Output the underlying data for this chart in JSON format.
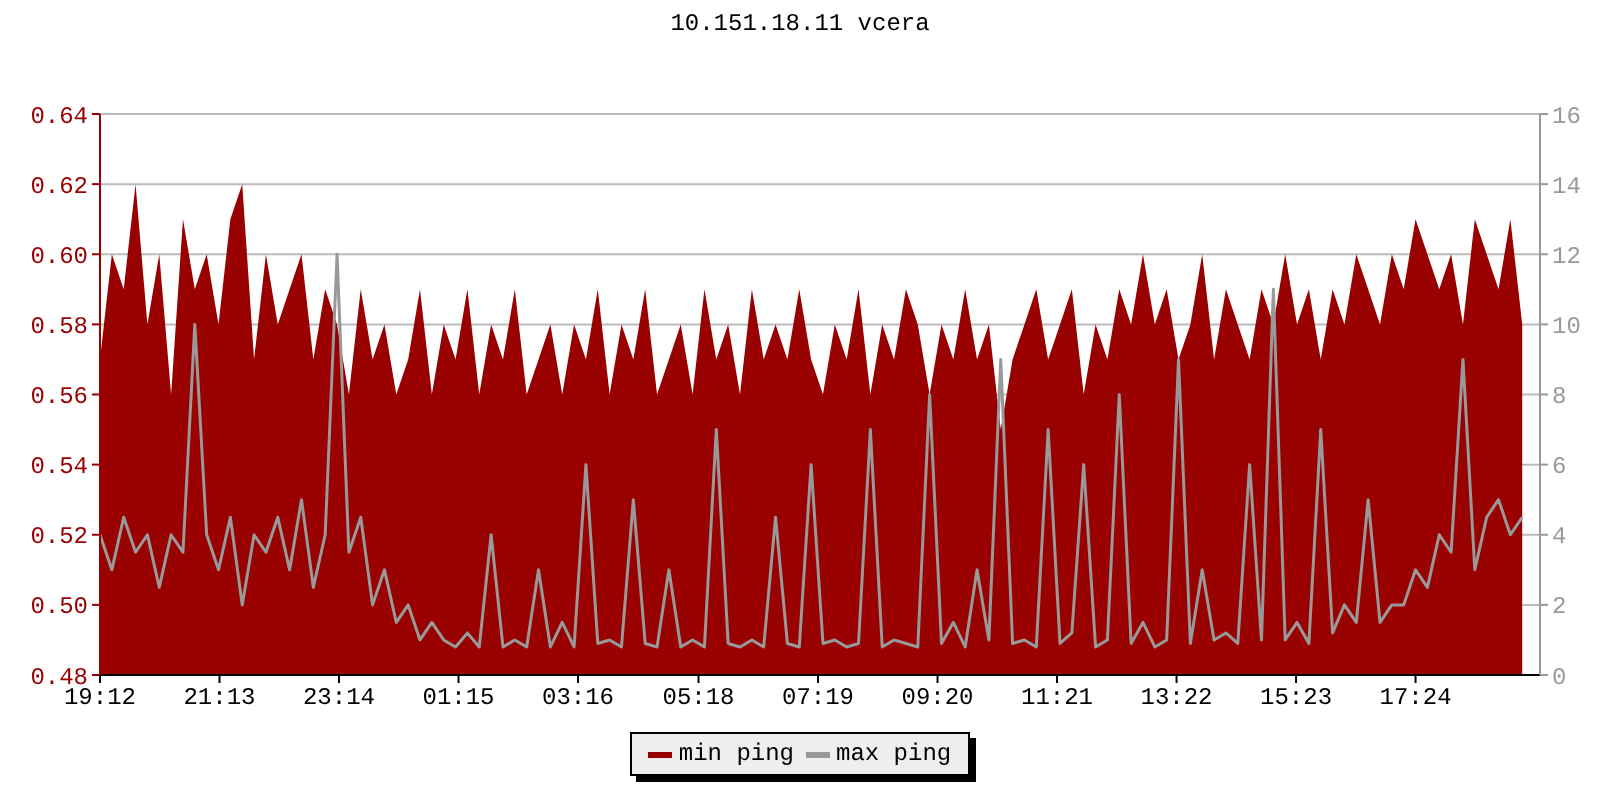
{
  "chart_data": {
    "type": "area",
    "title": "10.151.18.11 vcera",
    "x": [
      "--01-01T19:12",
      "--01-01T19:24",
      "--01-01T19:36",
      "--01-01T19:48",
      "--01-01T20:00",
      "--01-01T20:12",
      "--01-01T20:24",
      "--01-01T20:36",
      "--01-01T20:48",
      "--01-01T21:00",
      "--01-01T21:12",
      "--01-01T21:24",
      "--01-01T21:36",
      "--01-01T21:48",
      "--01-01T22:00",
      "--01-01T22:12",
      "--01-01T22:24",
      "--01-01T22:36",
      "--01-01T22:48",
      "--01-01T23:00",
      "--01-01T23:12",
      "--01-01T23:24",
      "--01-01T23:36",
      "--01-01T23:48",
      "--01-02T00:00",
      "--01-02T00:12",
      "--01-02T00:24",
      "--01-02T00:36",
      "--01-02T00:48",
      "--01-02T01:00",
      "--01-02T01:12",
      "--01-02T01:24",
      "--01-02T01:36",
      "--01-02T01:48",
      "--01-02T02:00",
      "--01-02T02:12",
      "--01-02T02:24",
      "--01-02T02:36",
      "--01-02T02:48",
      "--01-02T03:00",
      "--01-02T03:12",
      "--01-02T03:24",
      "--01-02T03:36",
      "--01-02T03:48",
      "--01-02T04:00",
      "--01-02T04:12",
      "--01-02T04:24",
      "--01-02T04:36",
      "--01-02T04:48",
      "--01-02T05:00",
      "--01-02T05:12",
      "--01-02T05:24",
      "--01-02T05:36",
      "--01-02T05:48",
      "--01-02T06:00",
      "--01-02T06:12",
      "--01-02T06:24",
      "--01-02T06:36",
      "--01-02T06:48",
      "--01-02T07:00",
      "--01-02T07:12",
      "--01-02T07:24",
      "--01-02T07:36",
      "--01-02T07:48",
      "--01-02T08:00",
      "--01-02T08:12",
      "--01-02T08:24",
      "--01-02T08:36",
      "--01-02T08:48",
      "--01-02T09:00",
      "--01-02T09:12",
      "--01-02T09:24",
      "--01-02T09:36",
      "--01-02T09:48",
      "--01-02T10:00",
      "--01-02T10:12",
      "--01-02T10:24",
      "--01-02T10:36",
      "--01-02T10:48",
      "--01-02T11:00",
      "--01-02T11:12",
      "--01-02T11:24",
      "--01-02T11:36",
      "--01-02T11:48",
      "--01-02T12:00",
      "--01-02T12:12",
      "--01-02T12:24",
      "--01-02T12:36",
      "--01-02T12:48",
      "--01-02T13:00",
      "--01-02T13:12",
      "--01-02T13:24",
      "--01-02T13:36",
      "--01-02T13:48",
      "--01-02T14:00",
      "--01-02T14:12",
      "--01-02T14:24",
      "--01-02T14:36",
      "--01-02T14:48",
      "--01-02T15:00",
      "--01-02T15:12",
      "--01-02T15:24",
      "--01-02T15:36",
      "--01-02T15:48",
      "--01-02T16:00",
      "--01-02T16:12",
      "--01-02T16:24",
      "--01-02T16:36",
      "--01-02T16:48",
      "--01-02T17:00",
      "--01-02T17:12",
      "--01-02T17:24",
      "--01-02T17:36",
      "--01-02T17:48",
      "--01-02T18:00",
      "--01-02T18:12",
      "--01-02T18:24",
      "--01-02T18:36",
      "--01-02T18:48",
      "--01-02T19:00",
      "--01-02T19:12"
    ],
    "series": [
      {
        "name": "min ping",
        "color": "#990000",
        "values": [
          0.57,
          0.6,
          0.59,
          0.62,
          0.58,
          0.6,
          0.56,
          0.61,
          0.59,
          0.6,
          0.58,
          0.61,
          0.62,
          0.57,
          0.6,
          0.58,
          0.59,
          0.6,
          0.57,
          0.59,
          0.58,
          0.56,
          0.59,
          0.57,
          0.58,
          0.56,
          0.57,
          0.59,
          0.56,
          0.58,
          0.57,
          0.59,
          0.56,
          0.58,
          0.57,
          0.59,
          0.56,
          0.57,
          0.58,
          0.56,
          0.58,
          0.57,
          0.59,
          0.56,
          0.58,
          0.57,
          0.59,
          0.56,
          0.57,
          0.58,
          0.56,
          0.59,
          0.57,
          0.58,
          0.56,
          0.59,
          0.57,
          0.58,
          0.57,
          0.59,
          0.57,
          0.56,
          0.58,
          0.57,
          0.59,
          0.56,
          0.58,
          0.57,
          0.59,
          0.58,
          0.56,
          0.58,
          0.57,
          0.59,
          0.57,
          0.58,
          0.55,
          0.57,
          0.58,
          0.59,
          0.57,
          0.58,
          0.59,
          0.56,
          0.58,
          0.57,
          0.59,
          0.58,
          0.6,
          0.58,
          0.59,
          0.57,
          0.58,
          0.6,
          0.57,
          0.59,
          0.58,
          0.57,
          0.59,
          0.58,
          0.6,
          0.58,
          0.59,
          0.57,
          0.59,
          0.58,
          0.6,
          0.59,
          0.58,
          0.6,
          0.59,
          0.61,
          0.6,
          0.59,
          0.6,
          0.58,
          0.61,
          0.6,
          0.59,
          0.61,
          0.58
        ]
      },
      {
        "name": "max ping",
        "type": "line",
        "axis": "y2",
        "color": "#999999",
        "values": [
          4,
          3,
          4.5,
          3.5,
          4,
          2.5,
          4,
          3.5,
          10,
          4,
          3,
          4.5,
          2,
          4,
          3.5,
          4.5,
          3,
          5,
          2.5,
          4,
          12,
          3.5,
          4.5,
          2,
          3,
          1.5,
          2,
          1,
          1.5,
          1,
          0.8,
          1.2,
          0.8,
          4,
          0.8,
          1,
          0.8,
          3,
          0.8,
          1.5,
          0.8,
          6,
          0.9,
          1,
          0.8,
          5,
          0.9,
          0.8,
          3,
          0.8,
          1,
          0.8,
          7,
          0.9,
          0.8,
          1,
          0.8,
          4.5,
          0.9,
          0.8,
          6,
          0.9,
          1,
          0.8,
          0.9,
          7,
          0.8,
          1,
          0.9,
          0.8,
          8,
          0.9,
          1.5,
          0.8,
          3,
          1,
          9,
          0.9,
          1,
          0.8,
          7,
          0.9,
          1.2,
          6,
          0.8,
          1,
          8,
          0.9,
          1.5,
          0.8,
          1,
          9,
          0.9,
          3,
          1,
          1.2,
          0.9,
          6,
          1,
          11,
          1,
          1.5,
          0.9,
          7,
          1.2,
          2,
          1.5,
          5,
          1.5,
          2,
          2,
          3,
          2.5,
          4,
          3.5,
          9,
          3,
          4.5,
          5,
          4,
          4.5
        ]
      }
    ],
    "xlim": [
      "--01-01T19:12",
      "--01-02T19:30"
    ],
    "xticks": [
      {
        "value": "--01-01T19:12",
        "label": "19:12"
      },
      {
        "value": "--01-01T21:13",
        "label": "21:13"
      },
      {
        "value": "--01-01T23:14",
        "label": "23:14"
      },
      {
        "value": "--01-02T01:15",
        "label": "01:15"
      },
      {
        "value": "--01-02T03:16",
        "label": "03:16"
      },
      {
        "value": "--01-02T05:18",
        "label": "05:18"
      },
      {
        "value": "--01-02T07:19",
        "label": "07:19"
      },
      {
        "value": "--01-02T09:20",
        "label": "09:20"
      },
      {
        "value": "--01-02T11:21",
        "label": "11:21"
      },
      {
        "value": "--01-02T13:22",
        "label": "13:22"
      },
      {
        "value": "--01-02T15:23",
        "label": "15:23"
      },
      {
        "value": "--01-02T17:24",
        "label": "17:24"
      }
    ],
    "ylim": [
      0.48,
      0.64
    ],
    "yticks": [
      {
        "value": 0.48,
        "label": "0.48"
      },
      {
        "value": 0.5,
        "label": "0.50"
      },
      {
        "value": 0.52,
        "label": "0.52"
      },
      {
        "value": 0.54,
        "label": "0.54"
      },
      {
        "value": 0.56,
        "label": "0.56"
      },
      {
        "value": 0.58,
        "label": "0.58"
      },
      {
        "value": 0.6,
        "label": "0.60"
      },
      {
        "value": 0.62,
        "label": "0.62"
      },
      {
        "value": 0.64,
        "label": "0.64"
      }
    ],
    "y2lim": [
      0,
      16
    ],
    "y2ticks": [
      0,
      2,
      4,
      6,
      8,
      10,
      12,
      14,
      16
    ],
    "grid": "y",
    "legend": "bottom"
  }
}
